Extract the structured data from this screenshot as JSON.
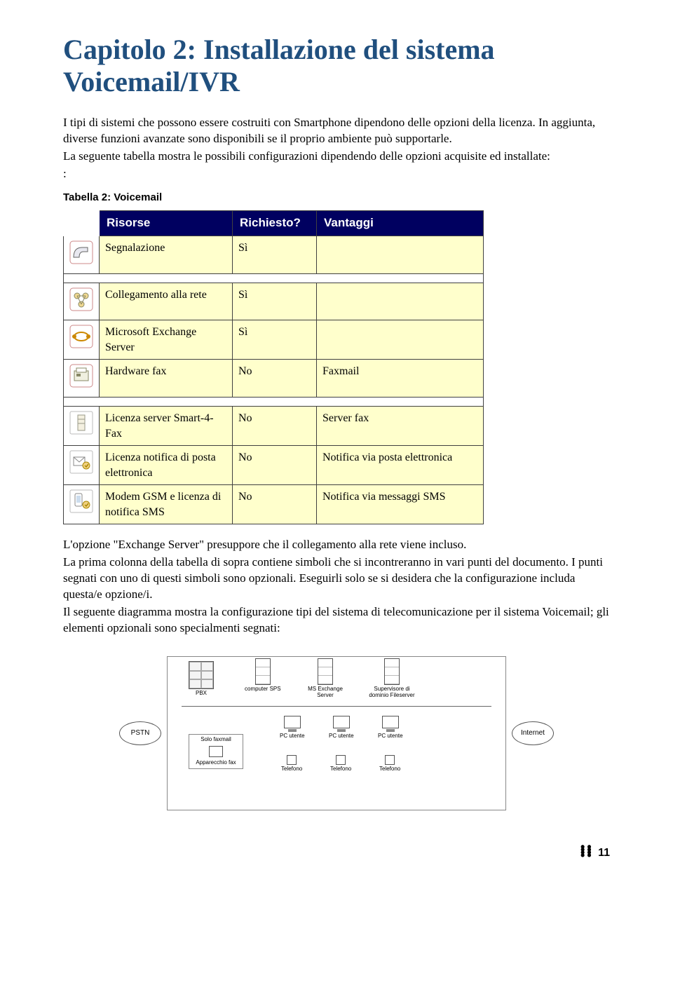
{
  "title": "Capitolo 2: Installazione del sistema Voicemail/IVR",
  "intro_p1": "I tipi di sistemi che possono essere costruiti con Smartphone dipendono delle opzioni della licenza. In aggiunta, diverse funzioni avanzate sono disponibili se il proprio ambiente può supportarle.",
  "intro_p2": "La seguente tabella mostra le possibili configurazioni dipendendo delle opzioni acquisite ed installate:",
  "intro_colon": ":",
  "table": {
    "caption": "Tabella 2: Voicemail",
    "headers": {
      "resource": "Risorse",
      "required": "Richiesto?",
      "advantage": "Vantaggi"
    },
    "header_bg": "#000060",
    "header_fg": "#ffffff",
    "cell_bg": "#ffffcc",
    "border_color": "#404040",
    "groups": [
      {
        "rows": [
          {
            "icon": "phone-icon",
            "resource": "Segnalazione",
            "required": "Sì",
            "advantage": ""
          }
        ]
      },
      {
        "rows": [
          {
            "icon": "network-icon",
            "resource": "Collegamento alla rete",
            "required": "Sì",
            "advantage": ""
          },
          {
            "icon": "exchange-icon",
            "resource": "Microsoft Exchange Server",
            "required": "Sì",
            "advantage": ""
          },
          {
            "icon": "fax-hw-icon",
            "resource": "Hardware fax",
            "required": "No",
            "advantage": "Faxmail"
          }
        ]
      },
      {
        "rows": [
          {
            "icon": "server-lic-icon",
            "resource": "Licenza server Smart-4-Fax",
            "required": "No",
            "advantage": "Server fax"
          },
          {
            "icon": "email-lic-icon",
            "resource": "Licenza notifica di posta elettronica",
            "required": "No",
            "advantage": "Notifica via posta elettronica"
          },
          {
            "icon": "sms-lic-icon",
            "resource": "Modem GSM e licenza di notifica SMS",
            "required": "No",
            "advantage": "Notifica via messaggi SMS"
          }
        ]
      }
    ]
  },
  "closing_p1": "L'opzione \"Exchange Server\" presuppore che il collegamento alla rete viene incluso.",
  "closing_p2": "La prima colonna della tabella di sopra contiene simboli che si incontreranno in vari punti del documento. I punti segnati con uno   di questi simboli sono opzionali. Eseguirli solo se si desidera che la configurazione includa questa/e opzione/i.",
  "closing_p3": "Il seguente diagramma mostra la configurazione tipi del sistema di telecomunicazione per il sistema Voicemail; gli elementi opzionali sono specialmenti segnati:",
  "diagram": {
    "pstn": "PSTN",
    "pbx": "PBX",
    "sps": "computer SPS",
    "exchange": "MS Exchange Server",
    "domain": "Supervisore di dominio Fileserver",
    "internet": "Internet",
    "pc": "PC utente",
    "phone": "Telefono",
    "fax_only": "Solo faxmail",
    "fax_device": "Apparecchio fax"
  },
  "page_number": "11",
  "colors": {
    "title": "#204f7e",
    "body_text": "#000000",
    "background": "#ffffff"
  }
}
